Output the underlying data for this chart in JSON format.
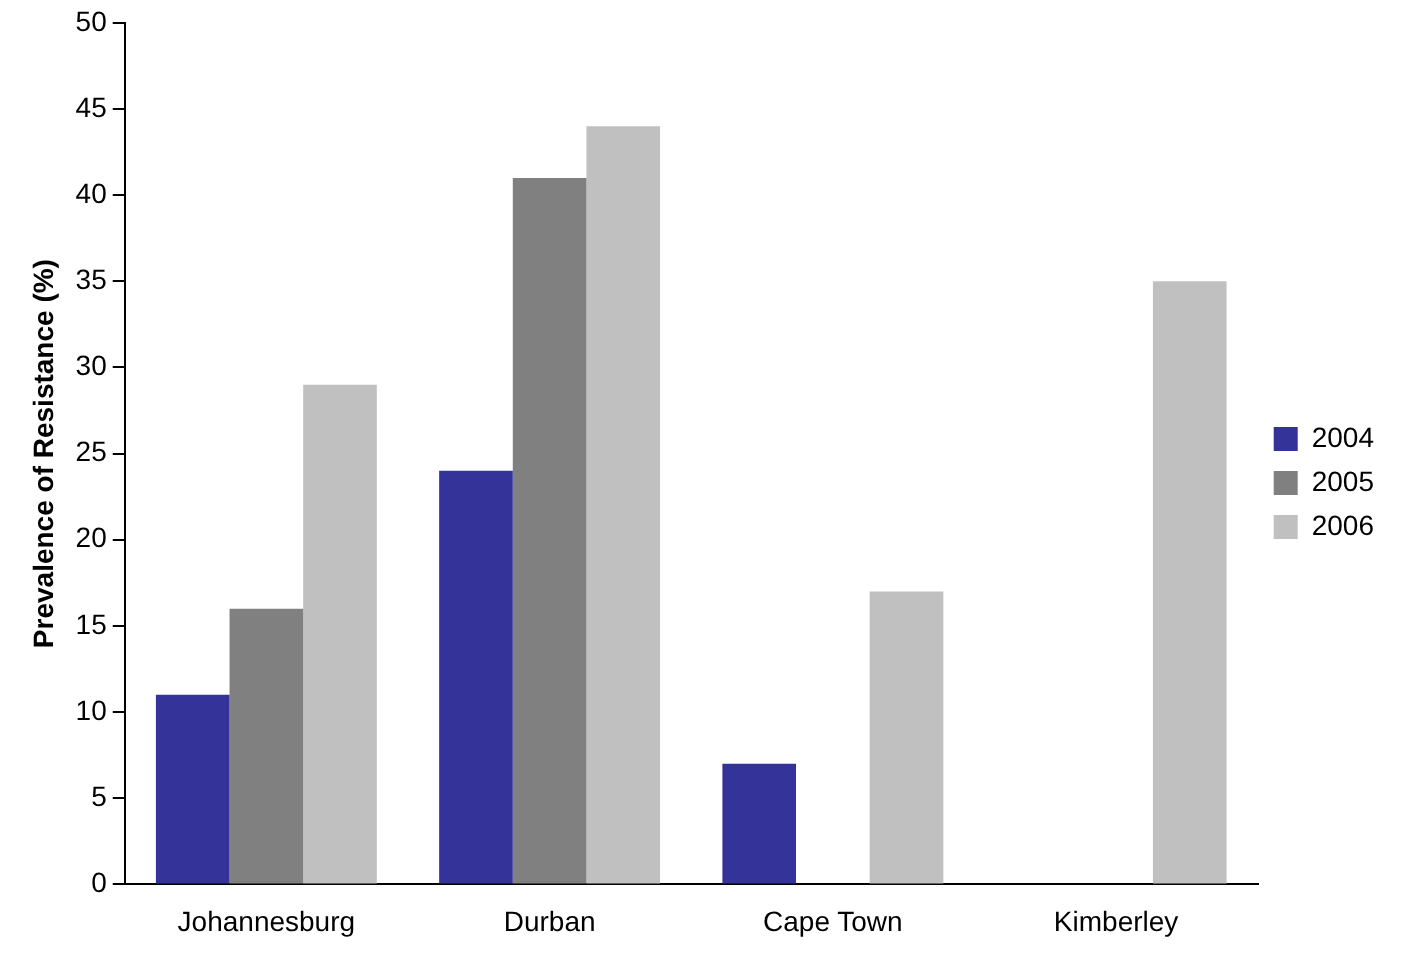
{
  "chart_data": {
    "type": "bar",
    "ylabel": "Prevalence of Resistance (%)",
    "categories": [
      "Johannesburg",
      "Durban",
      "Cape Town",
      "Kimberley"
    ],
    "series": [
      {
        "name": "2004",
        "color": "#333399",
        "values": [
          11,
          24,
          7,
          null
        ]
      },
      {
        "name": "2005",
        "color": "#808080",
        "values": [
          16,
          41,
          null,
          null
        ]
      },
      {
        "name": "2006",
        "color": "#c0c0c0",
        "values": [
          29,
          44,
          17,
          35
        ]
      }
    ],
    "ylim": [
      0,
      50
    ],
    "yticks": [
      0,
      5,
      10,
      15,
      20,
      25,
      30,
      35,
      40,
      45,
      50
    ],
    "grid": false,
    "legend": "right"
  }
}
